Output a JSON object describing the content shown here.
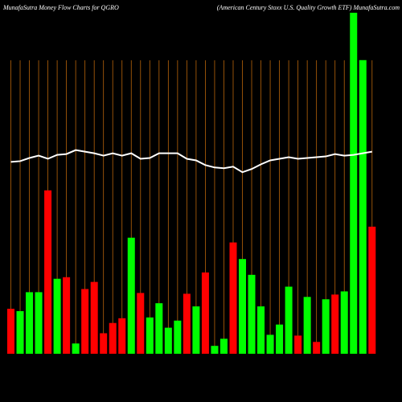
{
  "chart_data": {
    "type": "bar",
    "title": "MunafaSutra  Money Flow  Charts for QGRO",
    "subtitle": "(American  Century Stoxx U.S. Quality Growth ETF) MunafaSutra.com",
    "categories": [
      null,
      null,
      null,
      null,
      null,
      null,
      null,
      null,
      null,
      null,
      null,
      null,
      null,
      null,
      null,
      null,
      null,
      null,
      null,
      null,
      null,
      null,
      null,
      null,
      null,
      null,
      null,
      null,
      null,
      null,
      null,
      null,
      null,
      null,
      null,
      null,
      null,
      null,
      null,
      null
    ],
    "values": [
      57,
      54,
      78,
      78,
      207,
      95,
      97,
      13,
      82,
      91,
      26,
      39,
      45,
      147,
      77,
      46,
      64,
      33,
      42,
      76,
      60,
      103,
      10,
      19,
      141,
      120,
      100,
      60,
      24,
      37,
      85,
      23,
      72,
      15,
      69,
      75,
      79,
      432,
      372,
      161
    ],
    "colors": [
      "#ff0000",
      "#00ff00",
      "#00ff00",
      "#00ff00",
      "#ff0000",
      "#00ff00",
      "#ff0000",
      "#00ff00",
      "#ff0000",
      "#ff0000",
      "#ff0000",
      "#ff0000",
      "#ff0000",
      "#00ff00",
      "#ff0000",
      "#00ff00",
      "#00ff00",
      "#00ff00",
      "#00ff00",
      "#ff0000",
      "#00ff00",
      "#ff0000",
      "#00ff00",
      "#00ff00",
      "#ff0000",
      "#00ff00",
      "#00ff00",
      "#00ff00",
      "#00ff00",
      "#00ff00",
      "#00ff00",
      "#ff0000",
      "#00ff00",
      "#ff0000",
      "#00ff00",
      "#ff0000",
      "#00ff00",
      "#00ff00",
      "#00ff00",
      "#ff0000"
    ],
    "ylim": [
      0,
      440
    ],
    "price": {
      "color": "#ffffff",
      "axis": "y2",
      "values": [
        243,
        244,
        248,
        251,
        247,
        252,
        253,
        258,
        256,
        254,
        251,
        254,
        251,
        254,
        247,
        248,
        254,
        254,
        254,
        247,
        245,
        239,
        236,
        235,
        237,
        230,
        234,
        240,
        245,
        247,
        249,
        247,
        248,
        249,
        250,
        253,
        251,
        252,
        254,
        256
      ]
    },
    "y2lim": [
      0,
      440
    ],
    "grid_color": "#b8640a"
  }
}
